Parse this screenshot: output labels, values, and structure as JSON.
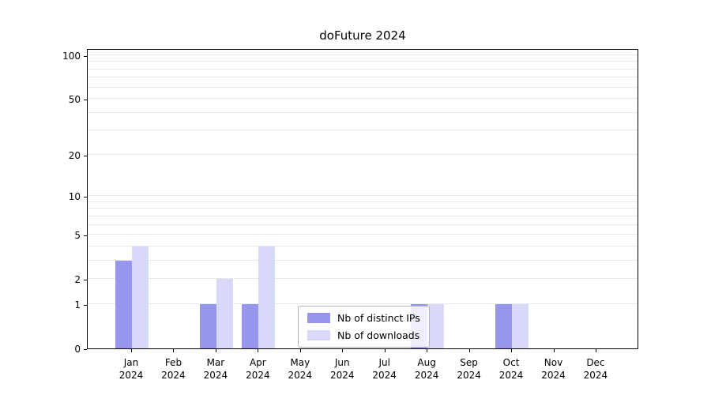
{
  "chart_data": {
    "type": "bar",
    "title": "doFuture 2024",
    "categories": [
      "Jan",
      "Feb",
      "Mar",
      "Apr",
      "May",
      "Jun",
      "Jul",
      "Aug",
      "Sep",
      "Oct",
      "Nov",
      "Dec"
    ],
    "year_label": "2024",
    "series": [
      {
        "name": "Nb of distinct IPs",
        "color": "#9696ec",
        "values": [
          3,
          0,
          1,
          1,
          0,
          0,
          0,
          1,
          0,
          1,
          0,
          0
        ]
      },
      {
        "name": "Nb of downloads",
        "color": "#d8d8f8",
        "values": [
          4,
          0,
          2,
          4,
          0,
          0,
          0,
          1,
          0,
          1,
          0,
          0
        ]
      }
    ],
    "yticks": [
      0,
      1,
      2,
      5,
      10,
      20,
      50,
      100
    ],
    "gridlines": [
      1,
      2,
      3,
      4,
      5,
      6,
      7,
      8,
      9,
      10,
      20,
      30,
      40,
      50,
      60,
      70,
      80,
      90,
      100
    ],
    "scale": "log1p",
    "axis_max": 112,
    "ylim": [
      0,
      112
    ],
    "grid": "horizontal",
    "legend_position": "bottom-center"
  }
}
